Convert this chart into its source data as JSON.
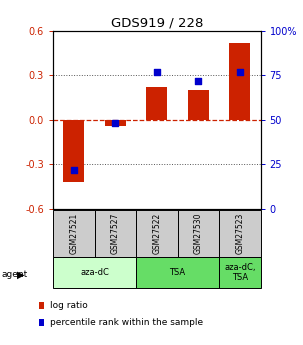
{
  "title": "GDS919 / 228",
  "samples": [
    "GSM27521",
    "GSM27527",
    "GSM27522",
    "GSM27530",
    "GSM27523"
  ],
  "log_ratio": [
    -0.42,
    -0.04,
    0.22,
    0.2,
    0.52
  ],
  "percentile_rank": [
    22,
    48,
    77,
    72,
    77
  ],
  "agent_groups": [
    {
      "label": "aza-dC",
      "start": 0,
      "end": 2,
      "color": "#ccffcc"
    },
    {
      "label": "TSA",
      "start": 2,
      "end": 4,
      "color": "#66dd66"
    },
    {
      "label": "aza-dC,\nTSA",
      "start": 4,
      "end": 5,
      "color": "#66dd66"
    }
  ],
  "ylim_left": [
    -0.6,
    0.6
  ],
  "ylim_right": [
    0,
    100
  ],
  "yticks_left": [
    -0.6,
    -0.3,
    0.0,
    0.3,
    0.6
  ],
  "yticks_right": [
    0,
    25,
    50,
    75,
    100
  ],
  "ytick_labels_right": [
    "0",
    "25",
    "50",
    "75",
    "100%"
  ],
  "bar_color": "#cc2200",
  "dot_color": "#0000cc",
  "sample_box_color": "#cccccc",
  "legend_log_ratio": "log ratio",
  "legend_percentile": "percentile rank within the sample",
  "dotted_line_color": "#555555",
  "zero_line_color": "#cc2200",
  "hline_positions": [
    -0.3,
    0.0,
    0.3
  ]
}
